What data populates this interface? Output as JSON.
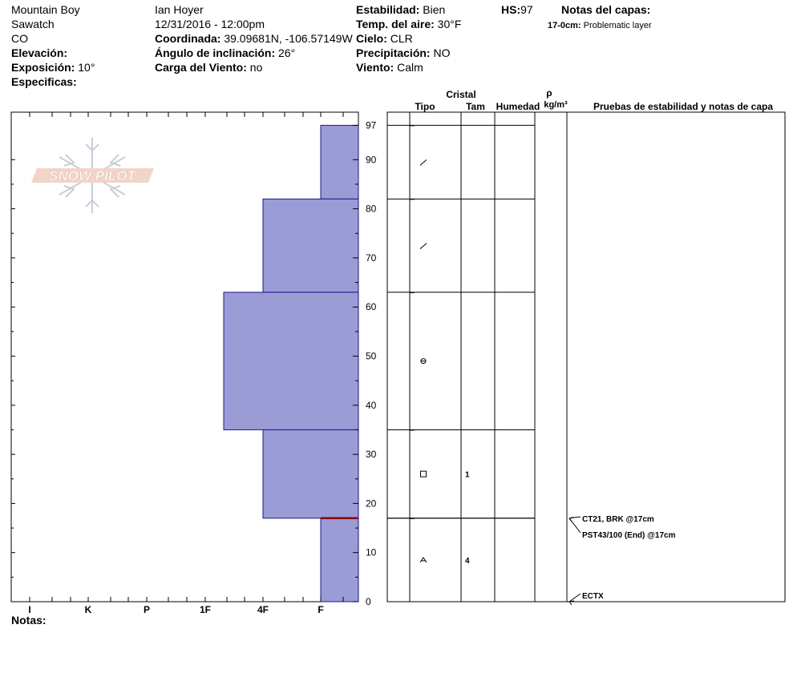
{
  "header": {
    "location": "Mountain Boy",
    "range": "Sawatch",
    "state": "CO",
    "elevation_label": "Elevación:",
    "elevation_value": "",
    "aspect_label": "Exposición:",
    "aspect_value": "10°",
    "specifics_label": "Especificas:",
    "observer": "Ian Hoyer",
    "datetime": "12/31/2016 - 12:00pm",
    "coord_label": "Coordinada:",
    "coord_value": "39.09681N, -106.57149W",
    "slope_label": "Ángulo de inclinación:",
    "slope_value": "26°",
    "wind_load_label": "Carga del Viento:",
    "wind_load_value": "no",
    "stability_label": "Estabilidad:",
    "stability_value": "Bien",
    "air_temp_label": "Temp. del aire:",
    "air_temp_value": "30°F",
    "sky_label": "Cielo:",
    "sky_value": "CLR",
    "precip_label": "Precipitación:",
    "precip_value": "NO",
    "wind_label": "Viento:",
    "wind_value": "Calm",
    "hs_label": "HS:",
    "hs_value": "97",
    "layer_notes_label": "Notas del capas:",
    "layer_note_depth": "17-0cm:",
    "layer_note_text": "Problematic layer"
  },
  "logo_text": "SNOW PILOT",
  "table_headers": {
    "crystal": "Cristal",
    "type": "Tipo",
    "size": "Tam",
    "moisture": "Humedad",
    "rho": "ρ",
    "density_unit": "kg/m³",
    "tests": "Pruebas de estabilidad y notas de capa"
  },
  "notes_label": "Notas:",
  "colors": {
    "layer_fill": "#9b9bd6",
    "layer_stroke": "#1a1a8c",
    "weak_layer": "#8b0000"
  },
  "chart_data": {
    "type": "bar",
    "y_label_top": "97",
    "ylim": [
      0,
      97
    ],
    "yticks": [
      0,
      10,
      20,
      30,
      40,
      50,
      60,
      70,
      80,
      90
    ],
    "hardness_categories": [
      "I",
      "K",
      "P",
      "1F",
      "4F",
      "F"
    ],
    "layers": [
      {
        "top": 97,
        "bottom": 82,
        "hardness": "F",
        "grain": "decomposing",
        "size": ""
      },
      {
        "top": 82,
        "bottom": 63,
        "hardness": "4F",
        "grain": "decomposing",
        "size": ""
      },
      {
        "top": 63,
        "bottom": 35,
        "hardness": "1F-",
        "grain": "rounded",
        "size": ""
      },
      {
        "top": 35,
        "bottom": 17,
        "hardness": "4F",
        "grain": "faceted",
        "size": "1"
      },
      {
        "top": 17,
        "bottom": 0,
        "hardness": "F",
        "grain": "depth-hoar",
        "size": "4"
      }
    ],
    "weak_layer_depth": 17,
    "tests": [
      {
        "depth": 17,
        "text": "CT21, BRK @17cm"
      },
      {
        "depth": 17,
        "text": "PST43/100 (End) @17cm"
      },
      {
        "depth": 0,
        "text": "ECTX"
      }
    ]
  }
}
